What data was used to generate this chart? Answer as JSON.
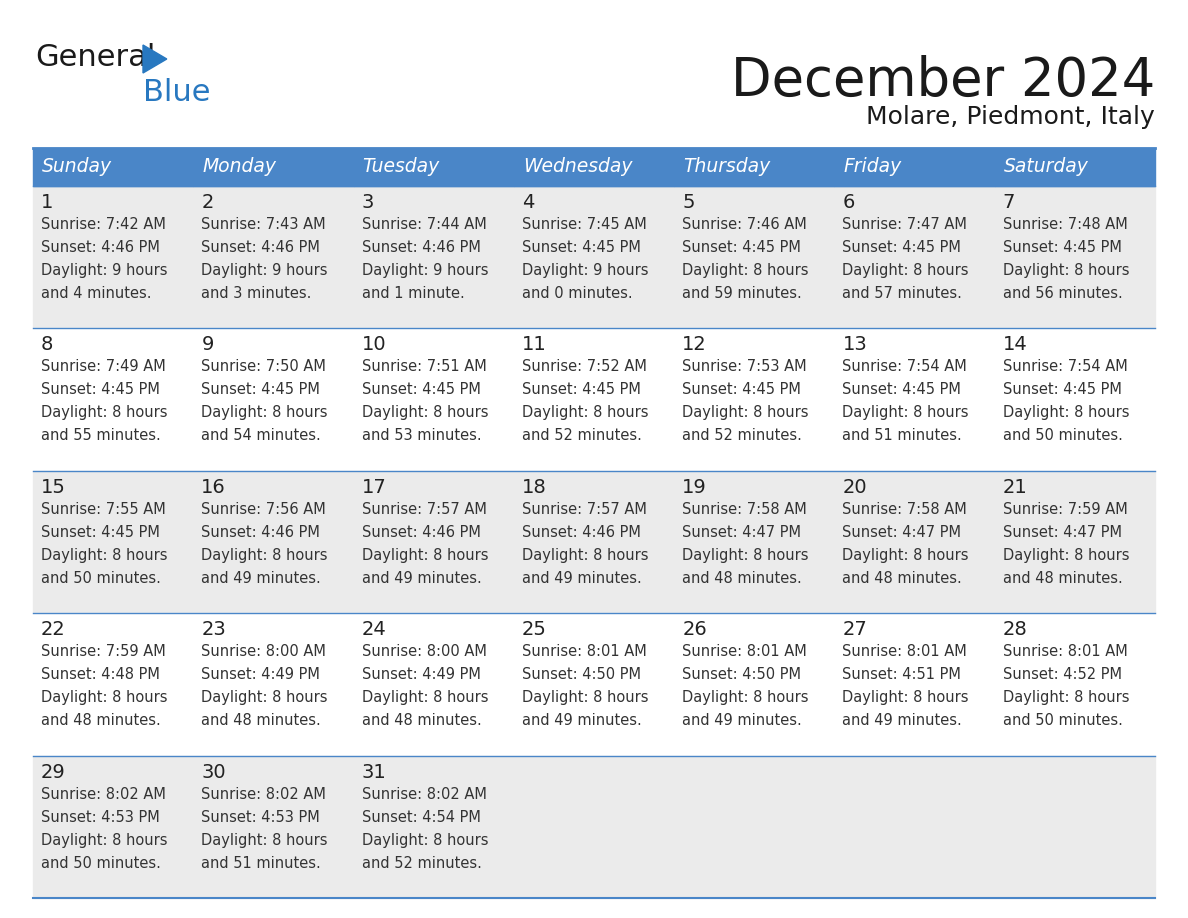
{
  "title": "December 2024",
  "subtitle": "Molare, Piedmont, Italy",
  "header_color": "#4A86C8",
  "header_text_color": "#FFFFFF",
  "weekdays": [
    "Sunday",
    "Monday",
    "Tuesday",
    "Wednesday",
    "Thursday",
    "Friday",
    "Saturday"
  ],
  "row_colors": [
    "#EBEBEB",
    "#FFFFFF",
    "#EBEBEB",
    "#FFFFFF",
    "#EBEBEB"
  ],
  "border_color": "#4A86C8",
  "day_number_color": "#222222",
  "cell_text_color": "#333333",
  "logo_general_color": "#1a1a1a",
  "logo_blue_color": "#2878C0",
  "logo_triangle_color": "#2878C0",
  "days": [
    {
      "day": 1,
      "col": 0,
      "row": 0,
      "sunrise": "7:42 AM",
      "sunset": "4:46 PM",
      "daylight_line1": "Daylight: 9 hours",
      "daylight_line2": "and 4 minutes."
    },
    {
      "day": 2,
      "col": 1,
      "row": 0,
      "sunrise": "7:43 AM",
      "sunset": "4:46 PM",
      "daylight_line1": "Daylight: 9 hours",
      "daylight_line2": "and 3 minutes."
    },
    {
      "day": 3,
      "col": 2,
      "row": 0,
      "sunrise": "7:44 AM",
      "sunset": "4:46 PM",
      "daylight_line1": "Daylight: 9 hours",
      "daylight_line2": "and 1 minute."
    },
    {
      "day": 4,
      "col": 3,
      "row": 0,
      "sunrise": "7:45 AM",
      "sunset": "4:45 PM",
      "daylight_line1": "Daylight: 9 hours",
      "daylight_line2": "and 0 minutes."
    },
    {
      "day": 5,
      "col": 4,
      "row": 0,
      "sunrise": "7:46 AM",
      "sunset": "4:45 PM",
      "daylight_line1": "Daylight: 8 hours",
      "daylight_line2": "and 59 minutes."
    },
    {
      "day": 6,
      "col": 5,
      "row": 0,
      "sunrise": "7:47 AM",
      "sunset": "4:45 PM",
      "daylight_line1": "Daylight: 8 hours",
      "daylight_line2": "and 57 minutes."
    },
    {
      "day": 7,
      "col": 6,
      "row": 0,
      "sunrise": "7:48 AM",
      "sunset": "4:45 PM",
      "daylight_line1": "Daylight: 8 hours",
      "daylight_line2": "and 56 minutes."
    },
    {
      "day": 8,
      "col": 0,
      "row": 1,
      "sunrise": "7:49 AM",
      "sunset": "4:45 PM",
      "daylight_line1": "Daylight: 8 hours",
      "daylight_line2": "and 55 minutes."
    },
    {
      "day": 9,
      "col": 1,
      "row": 1,
      "sunrise": "7:50 AM",
      "sunset": "4:45 PM",
      "daylight_line1": "Daylight: 8 hours",
      "daylight_line2": "and 54 minutes."
    },
    {
      "day": 10,
      "col": 2,
      "row": 1,
      "sunrise": "7:51 AM",
      "sunset": "4:45 PM",
      "daylight_line1": "Daylight: 8 hours",
      "daylight_line2": "and 53 minutes."
    },
    {
      "day": 11,
      "col": 3,
      "row": 1,
      "sunrise": "7:52 AM",
      "sunset": "4:45 PM",
      "daylight_line1": "Daylight: 8 hours",
      "daylight_line2": "and 52 minutes."
    },
    {
      "day": 12,
      "col": 4,
      "row": 1,
      "sunrise": "7:53 AM",
      "sunset": "4:45 PM",
      "daylight_line1": "Daylight: 8 hours",
      "daylight_line2": "and 52 minutes."
    },
    {
      "day": 13,
      "col": 5,
      "row": 1,
      "sunrise": "7:54 AM",
      "sunset": "4:45 PM",
      "daylight_line1": "Daylight: 8 hours",
      "daylight_line2": "and 51 minutes."
    },
    {
      "day": 14,
      "col": 6,
      "row": 1,
      "sunrise": "7:54 AM",
      "sunset": "4:45 PM",
      "daylight_line1": "Daylight: 8 hours",
      "daylight_line2": "and 50 minutes."
    },
    {
      "day": 15,
      "col": 0,
      "row": 2,
      "sunrise": "7:55 AM",
      "sunset": "4:45 PM",
      "daylight_line1": "Daylight: 8 hours",
      "daylight_line2": "and 50 minutes."
    },
    {
      "day": 16,
      "col": 1,
      "row": 2,
      "sunrise": "7:56 AM",
      "sunset": "4:46 PM",
      "daylight_line1": "Daylight: 8 hours",
      "daylight_line2": "and 49 minutes."
    },
    {
      "day": 17,
      "col": 2,
      "row": 2,
      "sunrise": "7:57 AM",
      "sunset": "4:46 PM",
      "daylight_line1": "Daylight: 8 hours",
      "daylight_line2": "and 49 minutes."
    },
    {
      "day": 18,
      "col": 3,
      "row": 2,
      "sunrise": "7:57 AM",
      "sunset": "4:46 PM",
      "daylight_line1": "Daylight: 8 hours",
      "daylight_line2": "and 49 minutes."
    },
    {
      "day": 19,
      "col": 4,
      "row": 2,
      "sunrise": "7:58 AM",
      "sunset": "4:47 PM",
      "daylight_line1": "Daylight: 8 hours",
      "daylight_line2": "and 48 minutes."
    },
    {
      "day": 20,
      "col": 5,
      "row": 2,
      "sunrise": "7:58 AM",
      "sunset": "4:47 PM",
      "daylight_line1": "Daylight: 8 hours",
      "daylight_line2": "and 48 minutes."
    },
    {
      "day": 21,
      "col": 6,
      "row": 2,
      "sunrise": "7:59 AM",
      "sunset": "4:47 PM",
      "daylight_line1": "Daylight: 8 hours",
      "daylight_line2": "and 48 minutes."
    },
    {
      "day": 22,
      "col": 0,
      "row": 3,
      "sunrise": "7:59 AM",
      "sunset": "4:48 PM",
      "daylight_line1": "Daylight: 8 hours",
      "daylight_line2": "and 48 minutes."
    },
    {
      "day": 23,
      "col": 1,
      "row": 3,
      "sunrise": "8:00 AM",
      "sunset": "4:49 PM",
      "daylight_line1": "Daylight: 8 hours",
      "daylight_line2": "and 48 minutes."
    },
    {
      "day": 24,
      "col": 2,
      "row": 3,
      "sunrise": "8:00 AM",
      "sunset": "4:49 PM",
      "daylight_line1": "Daylight: 8 hours",
      "daylight_line2": "and 48 minutes."
    },
    {
      "day": 25,
      "col": 3,
      "row": 3,
      "sunrise": "8:01 AM",
      "sunset": "4:50 PM",
      "daylight_line1": "Daylight: 8 hours",
      "daylight_line2": "and 49 minutes."
    },
    {
      "day": 26,
      "col": 4,
      "row": 3,
      "sunrise": "8:01 AM",
      "sunset": "4:50 PM",
      "daylight_line1": "Daylight: 8 hours",
      "daylight_line2": "and 49 minutes."
    },
    {
      "day": 27,
      "col": 5,
      "row": 3,
      "sunrise": "8:01 AM",
      "sunset": "4:51 PM",
      "daylight_line1": "Daylight: 8 hours",
      "daylight_line2": "and 49 minutes."
    },
    {
      "day": 28,
      "col": 6,
      "row": 3,
      "sunrise": "8:01 AM",
      "sunset": "4:52 PM",
      "daylight_line1": "Daylight: 8 hours",
      "daylight_line2": "and 50 minutes."
    },
    {
      "day": 29,
      "col": 0,
      "row": 4,
      "sunrise": "8:02 AM",
      "sunset": "4:53 PM",
      "daylight_line1": "Daylight: 8 hours",
      "daylight_line2": "and 50 minutes."
    },
    {
      "day": 30,
      "col": 1,
      "row": 4,
      "sunrise": "8:02 AM",
      "sunset": "4:53 PM",
      "daylight_line1": "Daylight: 8 hours",
      "daylight_line2": "and 51 minutes."
    },
    {
      "day": 31,
      "col": 2,
      "row": 4,
      "sunrise": "8:02 AM",
      "sunset": "4:54 PM",
      "daylight_line1": "Daylight: 8 hours",
      "daylight_line2": "and 52 minutes."
    }
  ]
}
